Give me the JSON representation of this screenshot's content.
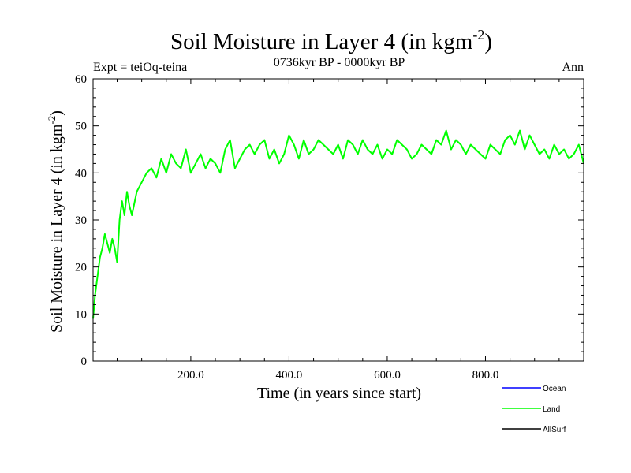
{
  "chart_data": {
    "type": "line",
    "title": "Soil Moisture in Layer 4 (in kgm",
    "title_superscript": "-2",
    "title_suffix": ")",
    "subtitle": "0736kyr BP - 0000kyr BP",
    "left_label": "Expt = teiOq-teina",
    "right_label": "Ann",
    "xlabel": "Time (in years since start)",
    "ylabel": "Soil Moisture in Layer 4 (in kgm",
    "ylabel_superscript": "-2",
    "ylabel_suffix": ")",
    "xlim": [
      1,
      1000
    ],
    "ylim": [
      0,
      60
    ],
    "x_ticks": [
      200,
      400,
      600,
      800
    ],
    "x_tick_labels": [
      "200.0",
      "400.0",
      "600.0",
      "800.0"
    ],
    "y_ticks": [
      0,
      10,
      20,
      30,
      40,
      50,
      60
    ],
    "y_tick_labels": [
      "0",
      "10",
      "20",
      "30",
      "40",
      "50",
      "60"
    ],
    "legend": [
      {
        "name": "Ocean",
        "color": "#0000ff"
      },
      {
        "name": "Land",
        "color": "#00ff00"
      },
      {
        "name": "AllSurf",
        "color": "#000000"
      }
    ],
    "series": [
      {
        "name": "Land",
        "color": "#00ff00",
        "x": [
          1,
          5,
          10,
          15,
          20,
          25,
          30,
          35,
          40,
          45,
          50,
          55,
          60,
          65,
          70,
          75,
          80,
          90,
          100,
          110,
          120,
          130,
          140,
          150,
          160,
          170,
          180,
          190,
          200,
          210,
          220,
          230,
          240,
          250,
          260,
          270,
          280,
          290,
          300,
          310,
          320,
          330,
          340,
          350,
          360,
          370,
          380,
          390,
          400,
          410,
          420,
          430,
          440,
          450,
          460,
          470,
          480,
          490,
          500,
          510,
          520,
          530,
          540,
          550,
          560,
          570,
          580,
          590,
          600,
          610,
          620,
          630,
          640,
          650,
          660,
          670,
          680,
          690,
          700,
          710,
          720,
          730,
          740,
          750,
          760,
          770,
          780,
          790,
          800,
          810,
          820,
          830,
          840,
          850,
          860,
          870,
          880,
          890,
          900,
          910,
          920,
          930,
          940,
          950,
          960,
          970,
          980,
          990,
          1000
        ],
        "values": [
          9,
          14,
          18,
          22,
          24,
          27,
          25,
          23,
          26,
          24,
          21,
          30,
          34,
          31,
          36,
          33,
          31,
          36,
          38,
          40,
          41,
          39,
          43,
          40,
          44,
          42,
          41,
          45,
          40,
          42,
          44,
          41,
          43,
          42,
          40,
          45,
          47,
          41,
          43,
          45,
          46,
          44,
          46,
          47,
          43,
          45,
          42,
          44,
          48,
          46,
          43,
          47,
          44,
          45,
          47,
          46,
          45,
          44,
          46,
          43,
          47,
          46,
          44,
          47,
          45,
          44,
          46,
          43,
          45,
          44,
          47,
          46,
          45,
          43,
          44,
          46,
          45,
          44,
          47,
          46,
          49,
          45,
          47,
          46,
          44,
          46,
          45,
          44,
          43,
          46,
          45,
          44,
          47,
          48,
          46,
          49,
          45,
          48,
          46,
          44,
          45,
          43,
          46,
          44,
          45,
          43,
          44,
          46,
          42
        ]
      }
    ]
  }
}
